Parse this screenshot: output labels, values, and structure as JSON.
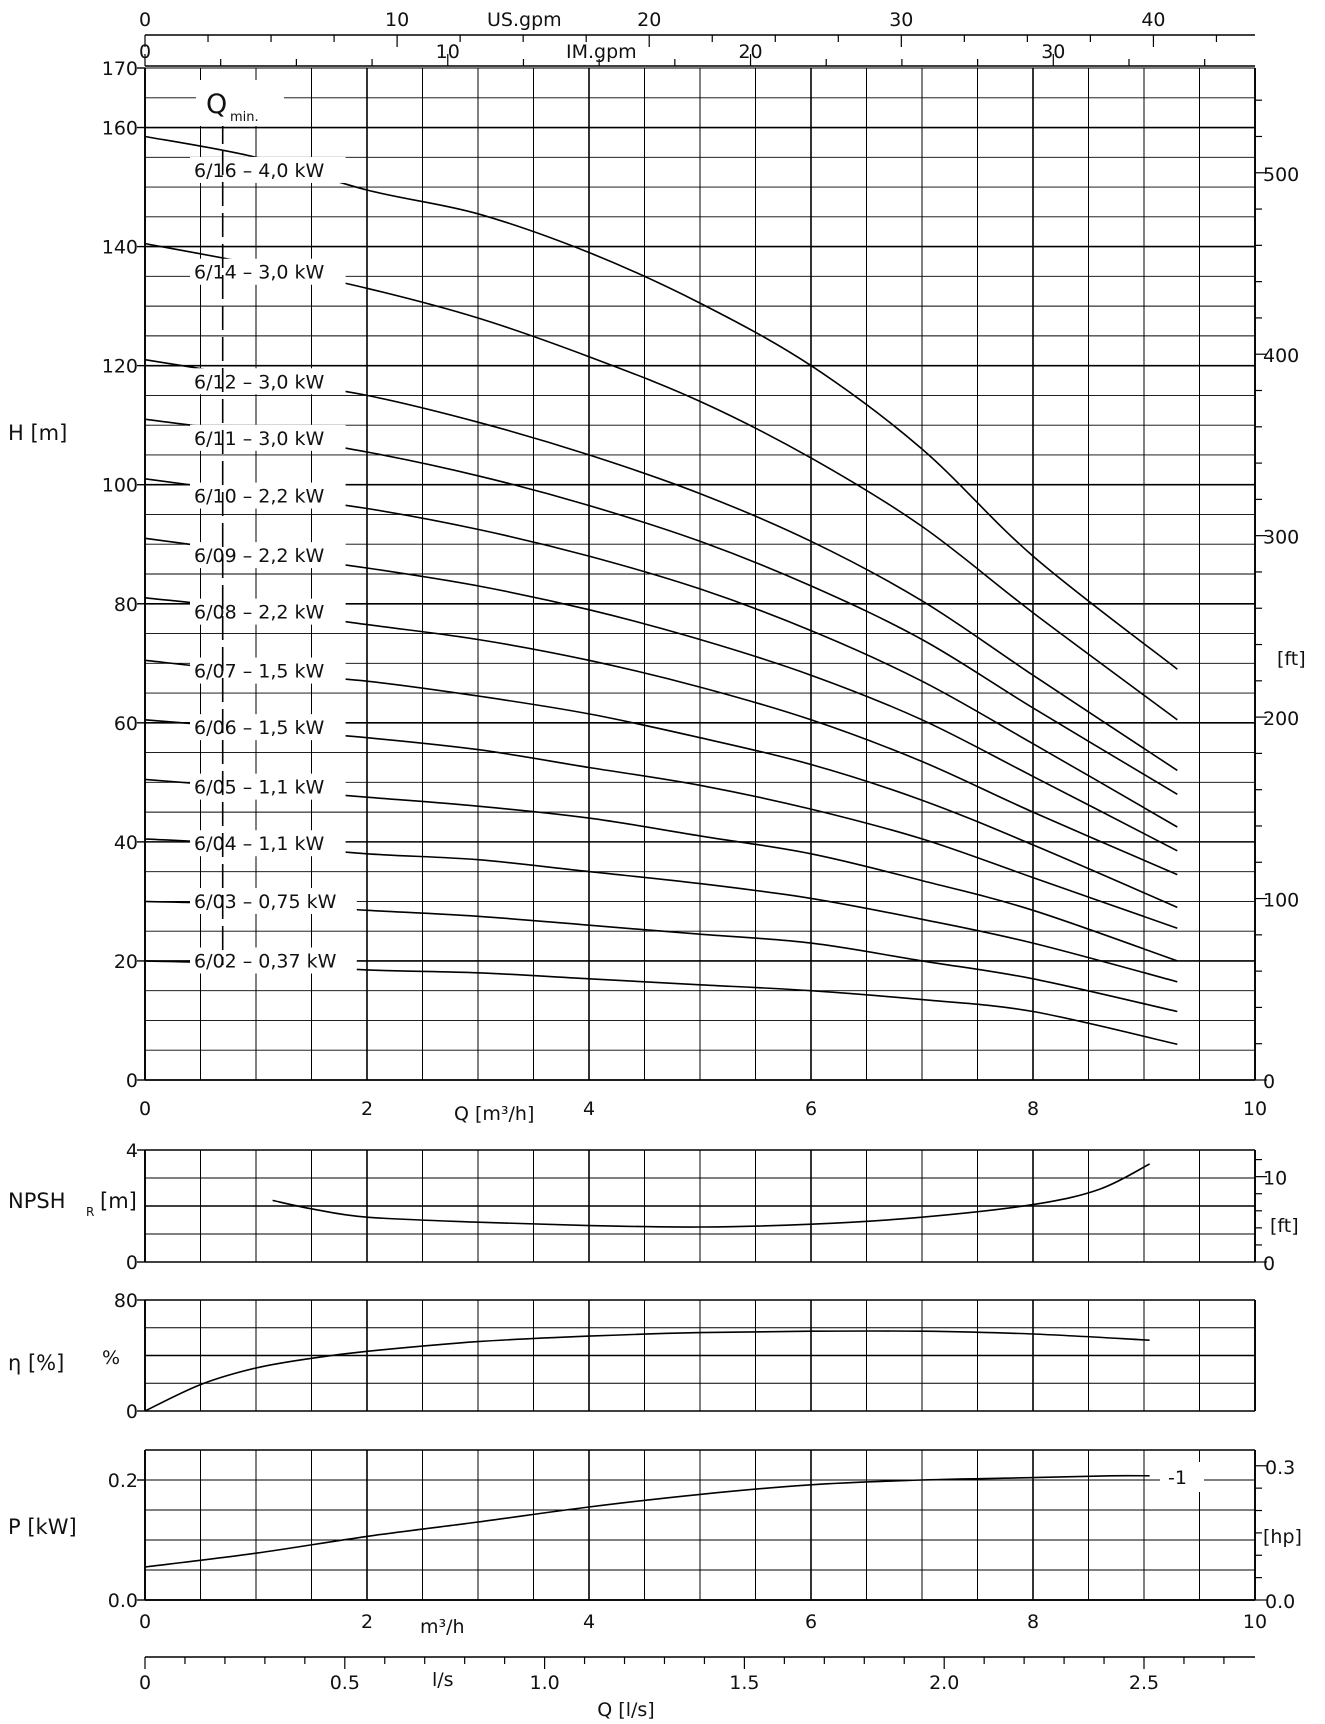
{
  "chart_data": [
    {
      "id": "head",
      "type": "line",
      "ylabel": "H [m]",
      "xlabel": "Q [m³/h]",
      "secondary_ylabel": "[ft]",
      "xlim": [
        0,
        10
      ],
      "ylim": [
        0,
        170
      ],
      "x_ticks": [
        "0",
        "2",
        "4",
        "6",
        "8",
        "10"
      ],
      "y_ticks": [
        "0",
        "20",
        "40",
        "60",
        "80",
        "100",
        "120",
        "140",
        "160",
        "170"
      ],
      "secondary_ticks": [
        "0",
        "100",
        "200",
        "300",
        "400",
        "500"
      ],
      "top_axis_us": {
        "label": "US.gpm",
        "ticks": [
          "0",
          "10",
          "20",
          "30",
          "40"
        ]
      },
      "top_axis_im": {
        "label": "IM.gpm",
        "ticks": [
          "0",
          "10",
          "20",
          "30"
        ]
      },
      "qmin_label": "Q",
      "qmin_sub": "min.",
      "qmin_value": 0.7,
      "grid": true,
      "x": [
        0,
        1,
        2,
        3,
        4,
        5,
        6,
        7,
        8,
        9.3
      ],
      "series": [
        {
          "name": "6/16 – 4,0 kW",
          "values": [
            158.5,
            155,
            149.5,
            145.5,
            139,
            130.5,
            120,
            106,
            88,
            69
          ]
        },
        {
          "name": "6/14 – 3,0 kW",
          "values": [
            140.5,
            137,
            133,
            128,
            121.5,
            114,
            104.5,
            93,
            78.5,
            60.5
          ]
        },
        {
          "name": "6/12 – 3,0 kW",
          "values": [
            121,
            118,
            115,
            110.5,
            105,
            98.5,
            90.5,
            80.5,
            68,
            52
          ]
        },
        {
          "name": "6/11 – 3,0 kW",
          "values": [
            111,
            108.5,
            105.5,
            101.5,
            96.5,
            90.5,
            83,
            74,
            62.5,
            48
          ]
        },
        {
          "name": "6/10 – 2,2 kW",
          "values": [
            101,
            98.5,
            96,
            92.5,
            88,
            82.5,
            75.5,
            67,
            56.5,
            42.5
          ]
        },
        {
          "name": "6/09 – 2,2 kW",
          "values": [
            91,
            88.5,
            86,
            83,
            79,
            74,
            68,
            60.5,
            51,
            38.5
          ]
        },
        {
          "name": "6/08 – 2,2 kW",
          "values": [
            81,
            79,
            76.5,
            74,
            70.5,
            66,
            60.5,
            53.5,
            45,
            34.5
          ]
        },
        {
          "name": "6/07 – 1,5 kW",
          "values": [
            70.5,
            68.5,
            67,
            64.5,
            61.5,
            57.5,
            53,
            47,
            39.5,
            29
          ]
        },
        {
          "name": "6/06 – 1,5 kW",
          "values": [
            60.5,
            59,
            57.5,
            55.5,
            52.5,
            49.5,
            45.5,
            40.5,
            34,
            25.5
          ]
        },
        {
          "name": "6/05 – 1,1 kW",
          "values": [
            50.5,
            49,
            47.5,
            46,
            44,
            41,
            38,
            33.5,
            28.5,
            20
          ]
        },
        {
          "name": "6/04 – 1,1 kW",
          "values": [
            40.5,
            39.5,
            38,
            37,
            35,
            33,
            30.5,
            27,
            23,
            16.5
          ]
        },
        {
          "name": "6/03 – 0,75 kW",
          "values": [
            30,
            29.5,
            28.5,
            27.5,
            26,
            24.5,
            23,
            20,
            17,
            11.5
          ]
        },
        {
          "name": "6/02 – 0,37 kW",
          "values": [
            20,
            19.5,
            18.5,
            18,
            17,
            16,
            15,
            13.5,
            11.5,
            6
          ]
        }
      ]
    },
    {
      "id": "npsh",
      "type": "line",
      "ylabel_main": "NPSH",
      "ylabel_sub": "R",
      "ylabel_unit": "[m]",
      "secondary_ylabel": "[ft]",
      "xlim": [
        0,
        10
      ],
      "ylim": [
        0,
        4
      ],
      "y_ticks": [
        "0",
        "4"
      ],
      "secondary_ticks": [
        "0",
        "10"
      ],
      "grid": true,
      "x": [
        1.15,
        1.5,
        2,
        3,
        4,
        5,
        6,
        7,
        8,
        8.6,
        9.05
      ],
      "values": [
        2.2,
        1.9,
        1.6,
        1.42,
        1.3,
        1.25,
        1.35,
        1.6,
        2.05,
        2.6,
        3.5
      ]
    },
    {
      "id": "efficiency",
      "type": "line",
      "ylabel": "η [%]",
      "inner_label": "%",
      "xlim": [
        0,
        10
      ],
      "ylim": [
        0,
        80
      ],
      "y_ticks": [
        "0",
        "80"
      ],
      "grid": true,
      "x": [
        0,
        0.5,
        1,
        1.5,
        2,
        3,
        4,
        5,
        6,
        7,
        8,
        9.05
      ],
      "values": [
        0,
        19,
        31,
        38,
        43,
        50,
        54,
        56.5,
        57.5,
        57.5,
        55.5,
        51
      ]
    },
    {
      "id": "power",
      "type": "line",
      "ylabel": "P [kW]",
      "secondary_ylabel": "[hp]",
      "xlabel": "m³/h",
      "curve_label": "-1",
      "xlim": [
        0,
        10
      ],
      "ylim": [
        0,
        0.25
      ],
      "y_ticks": [
        "0.0",
        "0.2"
      ],
      "secondary_ticks": [
        "0.0",
        "0.3"
      ],
      "x_ticks": [
        "0",
        "2",
        "4",
        "6",
        "8",
        "10"
      ],
      "grid": true,
      "x": [
        0,
        1,
        2,
        3,
        4,
        5,
        6,
        7,
        8,
        8.7,
        9.05
      ],
      "values": [
        0.055,
        0.078,
        0.106,
        0.13,
        0.155,
        0.176,
        0.192,
        0.2,
        0.204,
        0.207,
        0.207
      ]
    },
    {
      "id": "flow_ls",
      "type": "axis",
      "xlabel": "Q [l/s]",
      "unit_label": "l/s",
      "ticks": [
        "0",
        "0.5",
        "1.0",
        "1.5",
        "2.0",
        "2.5"
      ]
    }
  ]
}
